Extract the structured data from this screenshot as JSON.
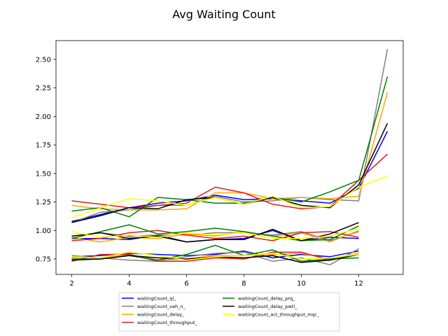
{
  "chart_data": {
    "type": "line",
    "title": "Avg Waiting Count",
    "xlabel": "",
    "ylabel": "",
    "xlim": [
      1.45,
      13.55
    ],
    "ylim": [
      0.615,
      2.665
    ],
    "xticks": [
      2,
      4,
      6,
      8,
      10,
      12
    ],
    "yticks": [
      0.75,
      1.0,
      1.25,
      1.5,
      1.75,
      2.0,
      2.25,
      2.5
    ],
    "ytick_labels": [
      "0.75",
      "1.00",
      "1.25",
      "1.50",
      "1.75",
      "2.00",
      "2.25",
      "2.50"
    ],
    "grid": false,
    "legend_position": "below",
    "legend_columns": 2,
    "x": [
      2,
      3,
      4,
      5,
      6,
      7,
      8,
      9,
      10,
      11,
      12,
      13
    ],
    "series": [
      {
        "name": "waitingCount_ql_",
        "color": "#0000ff",
        "lines": [
          [
            1.08,
            1.14,
            1.2,
            1.24,
            1.26,
            1.31,
            1.27,
            1.28,
            1.26,
            1.24,
            1.37,
            1.87
          ],
          [
            0.93,
            0.93,
            0.92,
            0.96,
            0.9,
            0.92,
            0.93,
            1.0,
            0.91,
            0.94,
            0.93
          ],
          [
            0.77,
            0.78,
            0.8,
            0.79,
            0.78,
            0.79,
            0.82,
            0.76,
            0.79,
            0.77,
            0.82
          ]
        ]
      },
      {
        "name": "waitingCount_veh_n_",
        "color": "#808080",
        "lines": [
          [
            1.07,
            1.16,
            1.18,
            1.22,
            1.22,
            1.3,
            1.25,
            1.26,
            1.29,
            1.27,
            1.26,
            2.59
          ],
          [
            0.95,
            0.98,
            0.95,
            0.96,
            0.96,
            0.98,
            0.98,
            0.96,
            0.99,
            0.91,
            0.99
          ],
          [
            0.78,
            0.76,
            0.74,
            0.73,
            0.77,
            0.8,
            0.81,
            0.73,
            0.76,
            0.7,
            0.84
          ]
        ]
      },
      {
        "name": "waitingCount_delay_",
        "color": "#ffa500",
        "lines": [
          [
            1.22,
            1.19,
            1.18,
            1.18,
            1.19,
            1.33,
            1.33,
            1.28,
            1.29,
            1.28,
            1.3,
            2.21
          ],
          [
            0.94,
            0.9,
            0.94,
            0.93,
            0.97,
            0.95,
            0.99,
            0.95,
            0.98,
            0.9,
            1.0
          ],
          [
            0.76,
            0.76,
            0.79,
            0.74,
            0.75,
            0.78,
            0.78,
            0.79,
            0.8,
            0.75,
            0.8
          ]
        ]
      },
      {
        "name": "waitingCount_throughput_",
        "color": "#e41a1c",
        "lines": [
          [
            1.26,
            1.23,
            1.2,
            1.22,
            1.24,
            1.38,
            1.33,
            1.23,
            1.19,
            1.21,
            1.44,
            1.67
          ],
          [
            0.91,
            0.93,
            0.98,
            1.0,
            0.96,
            0.93,
            0.95,
            0.91,
            0.98,
            0.99,
            0.94
          ],
          [
            0.73,
            0.79,
            0.79,
            0.73,
            0.73,
            0.76,
            0.75,
            0.81,
            0.81,
            0.74,
            0.79
          ]
        ]
      },
      {
        "name": "waitingCount_delay_prq_",
        "color": "#008000",
        "lines": [
          [
            1.17,
            1.2,
            1.12,
            1.29,
            1.27,
            1.24,
            1.24,
            1.29,
            1.25,
            1.34,
            1.44,
            2.35
          ],
          [
            0.93,
            0.99,
            1.05,
            0.97,
            0.99,
            1.02,
            0.99,
            0.95,
            0.91,
            0.92,
            1.04
          ],
          [
            0.75,
            0.75,
            0.78,
            0.74,
            0.79,
            0.87,
            0.78,
            0.83,
            0.73,
            0.75,
            0.76
          ]
        ]
      },
      {
        "name": "waitingCount_delay_pwtl_",
        "color": "#000000",
        "lines": [
          [
            1.07,
            1.13,
            1.2,
            1.19,
            1.27,
            1.29,
            1.23,
            1.29,
            1.22,
            1.2,
            1.4,
            1.94
          ],
          [
            0.95,
            0.98,
            0.93,
            0.95,
            0.9,
            0.92,
            0.92,
            1.01,
            0.91,
            0.97,
            1.07
          ],
          [
            0.74,
            0.75,
            0.78,
            0.76,
            0.75,
            0.77,
            0.76,
            0.78,
            0.72,
            0.74,
            0.79
          ]
        ]
      },
      {
        "name": "waitingCount_act_throughput_mqr_",
        "color": "#ffff00",
        "lines": [
          [
            1.11,
            1.2,
            1.28,
            1.26,
            1.22,
            1.29,
            1.23,
            1.3,
            1.2,
            1.21,
            1.38,
            1.48
          ],
          [
            0.99,
            0.94,
            0.96,
            0.94,
            0.98,
            0.96,
            0.98,
            0.93,
            0.93,
            0.95,
            1.02
          ],
          [
            0.77,
            0.76,
            0.81,
            0.78,
            0.74,
            0.77,
            0.78,
            0.8,
            0.75,
            0.76,
            0.79
          ]
        ]
      }
    ]
  }
}
